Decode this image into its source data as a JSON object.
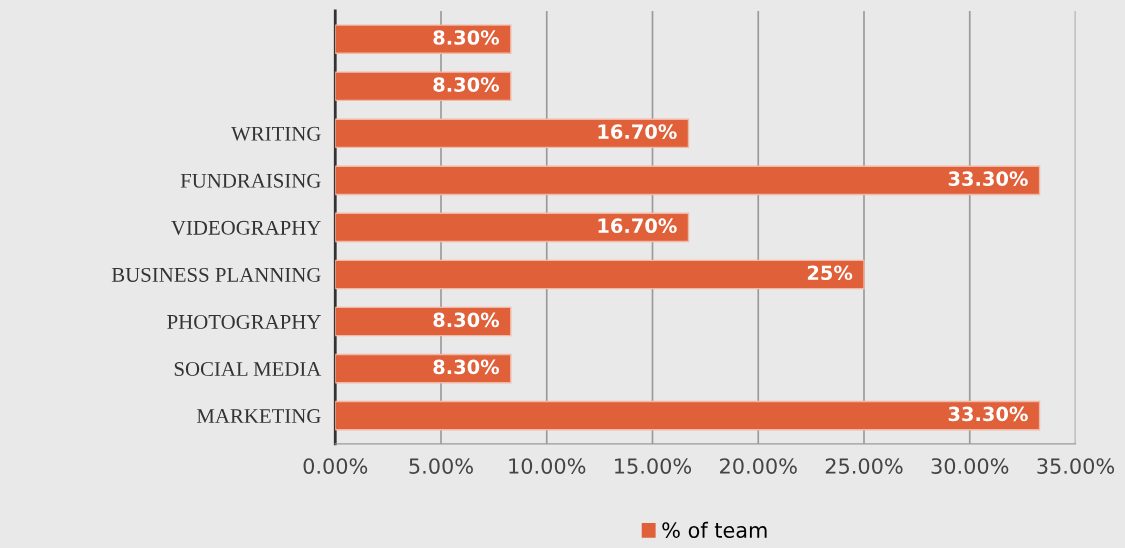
{
  "chart_data": {
    "type": "bar",
    "orientation": "horizontal",
    "categories": [
      null,
      null,
      "WRITING",
      "FUNDRAISING",
      "VIDEOGRAPHY",
      "BUSINESS PLANNING",
      "PHOTOGRAPHY",
      "SOCIAL MEDIA",
      "MARKETING"
    ],
    "series": [
      {
        "name": "% of team",
        "color": "#e0603a",
        "values": [
          8.3,
          8.3,
          16.7,
          33.3,
          16.7,
          25,
          8.3,
          8.3,
          33.3
        ],
        "value_labels": [
          "8.30%",
          "8.30%",
          "16.70%",
          "33.30%",
          "16.70%",
          "25%",
          "8.30%",
          "8.30%",
          "33.30%"
        ]
      }
    ],
    "xlim": [
      0,
      35
    ],
    "xticks": [
      {
        "value": 0,
        "label": "0.00%"
      },
      {
        "value": 5,
        "label": "5.00%"
      },
      {
        "value": 10,
        "label": "10.00%"
      },
      {
        "value": 15,
        "label": "15.00%"
      },
      {
        "value": 20,
        "label": "20.00%"
      },
      {
        "value": 25,
        "label": "25.00%"
      },
      {
        "value": 30,
        "label": "30.00%"
      },
      {
        "value": 35,
        "label": "35.00%"
      }
    ],
    "grid": "x",
    "legend": "bottom"
  }
}
